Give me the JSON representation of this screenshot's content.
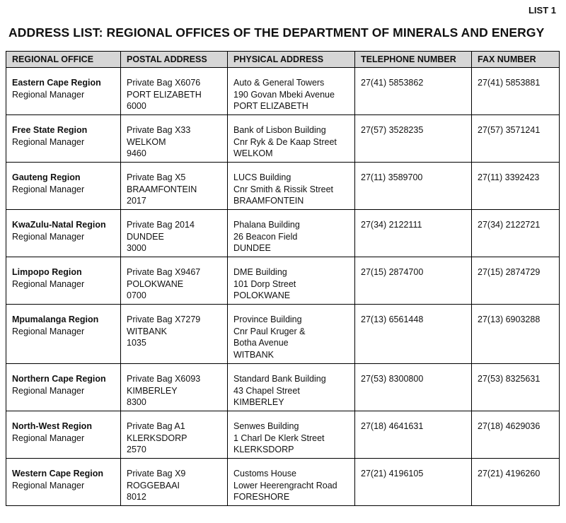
{
  "list_label": "LIST 1",
  "title": "ADDRESS LIST:  REGIONAL OFFICES OF THE DEPARTMENT OF MINERALS AND ENERGY",
  "headers": [
    "REGIONAL OFFICE",
    "POSTAL ADDRESS",
    "PHYSICAL ADDRESS",
    "TELEPHONE NUMBER",
    "FAX NUMBER"
  ],
  "rows": [
    {
      "region": "Eastern Cape Region",
      "role": "Regional Manager",
      "postal": [
        "Private Bag X6076",
        "PORT ELIZABETH",
        "6000"
      ],
      "physical": [
        "Auto & General Towers",
        "190 Govan Mbeki Avenue",
        "PORT ELIZABETH"
      ],
      "tel": "27(41) 5853862",
      "fax": "27(41) 5853881"
    },
    {
      "region": "Free State Region",
      "role": "Regional Manager",
      "postal": [
        "Private Bag X33",
        "WELKOM",
        "9460"
      ],
      "physical": [
        "Bank of Lisbon Building",
        "Cnr Ryk & De Kaap Street",
        "WELKOM"
      ],
      "tel": "27(57) 3528235",
      "fax": "27(57) 3571241"
    },
    {
      "region": "Gauteng Region",
      "role": "Regional Manager",
      "postal": [
        "Private Bag X5",
        "BRAAMFONTEIN",
        "2017"
      ],
      "physical": [
        "LUCS Building",
        "Cnr Smith & Rissik Street",
        "BRAAMFONTEIN"
      ],
      "tel": "27(11) 3589700",
      "fax": "27(11) 3392423"
    },
    {
      "region": "KwaZulu-Natal Region",
      "role": "Regional Manager",
      "postal": [
        "Private Bag 2014",
        "DUNDEE",
        "3000"
      ],
      "physical": [
        "Phalana Building",
        "26 Beacon Field",
        "DUNDEE"
      ],
      "tel": "27(34) 2122111",
      "fax": "27(34) 2122721"
    },
    {
      "region": "Limpopo Region",
      "role": "Regional Manager",
      "postal": [
        "Private Bag X9467",
        "POLOKWANE",
        "0700"
      ],
      "physical": [
        "DME Building",
        "101 Dorp Street",
        "POLOKWANE"
      ],
      "tel": "27(15) 2874700",
      "fax": "27(15) 2874729"
    },
    {
      "region": "Mpumalanga Region",
      "role": "Regional Manager",
      "postal": [
        "Private Bag X7279",
        "WITBANK",
        "1035"
      ],
      "physical": [
        "Province Building",
        "Cnr Paul Kruger &",
        "Botha Avenue",
        "WITBANK"
      ],
      "tel": "27(13) 6561448",
      "fax": "27(13) 6903288"
    },
    {
      "region": "Northern Cape Region",
      "role": "Regional Manager",
      "postal": [
        "Private Bag X6093",
        "KIMBERLEY",
        "8300"
      ],
      "physical": [
        "Standard Bank Building",
        "43 Chapel Street",
        "KIMBERLEY"
      ],
      "tel": "27(53) 8300800",
      "fax": "27(53) 8325631"
    },
    {
      "region": "North-West Region",
      "role": "Regional Manager",
      "postal": [
        "Private Bag A1",
        "KLERKSDORP",
        "2570"
      ],
      "physical": [
        "Senwes Building",
        "1 Charl De Klerk Street",
        "KLERKSDORP"
      ],
      "tel": "27(18) 4641631",
      "fax": "27(18) 4629036"
    },
    {
      "region": "Western Cape Region",
      "role": "Regional Manager",
      "postal": [
        "Private Bag X9",
        "ROGGEBAAI",
        "8012"
      ],
      "physical": [
        "Customs House",
        "Lower Heerengracht Road",
        "FORESHORE"
      ],
      "tel": "27(21) 4196105",
      "fax": "27(21) 4196260"
    }
  ]
}
